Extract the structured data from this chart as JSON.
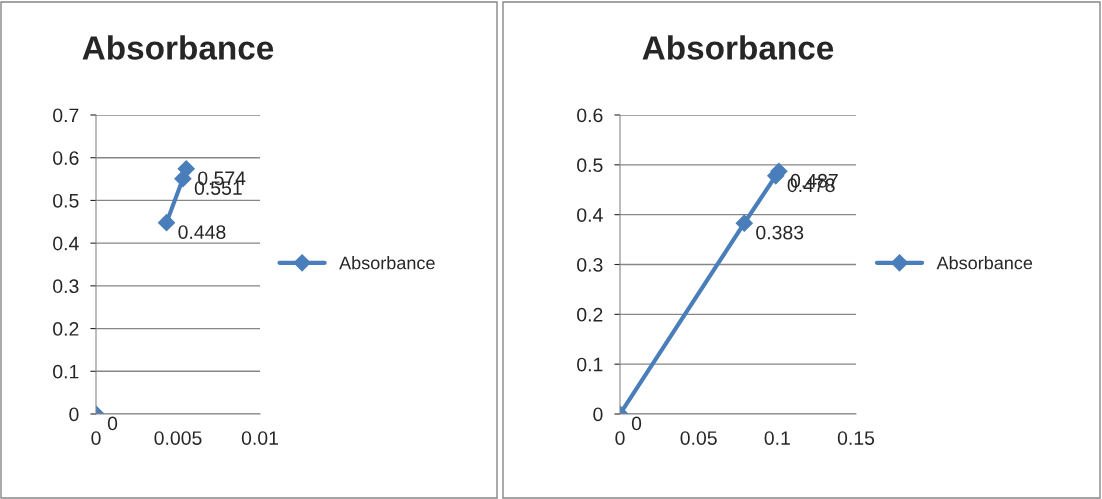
{
  "chart_data": [
    {
      "type": "line",
      "title": "Absorbance",
      "x": [
        0,
        null,
        0.0043,
        0.0053,
        0.0055
      ],
      "series": [
        {
          "name": "Absorbance",
          "color": "#4a7ebb",
          "values": [
            0,
            null,
            0.448,
            0.551,
            0.574
          ]
        }
      ],
      "xlim": [
        0,
        0.01
      ],
      "xticks": [
        0,
        0.005,
        0.01
      ],
      "ylim": [
        0,
        0.7
      ],
      "yticks": [
        0,
        0.1,
        0.2,
        0.3,
        0.4,
        0.5,
        0.6,
        0.7
      ],
      "grid": "y",
      "legend": "right",
      "marker": "diamond",
      "line_style": "solid",
      "data_labels": true
    },
    {
      "type": "line",
      "title": "Absorbance",
      "x": [
        0,
        0.079,
        0.099,
        0.101
      ],
      "series": [
        {
          "name": "Absorbance",
          "color": "#4a7ebb",
          "values": [
            0,
            0.383,
            0.478,
            0.487
          ]
        }
      ],
      "xlim": [
        0,
        0.15
      ],
      "xticks": [
        0,
        0.05,
        0.1,
        0.15
      ],
      "ylim": [
        0,
        0.6
      ],
      "yticks": [
        0,
        0.1,
        0.2,
        0.3,
        0.4,
        0.5,
        0.6
      ],
      "grid": "y",
      "legend": "right",
      "marker": "diamond",
      "line_style": "solid",
      "data_labels": true
    }
  ]
}
